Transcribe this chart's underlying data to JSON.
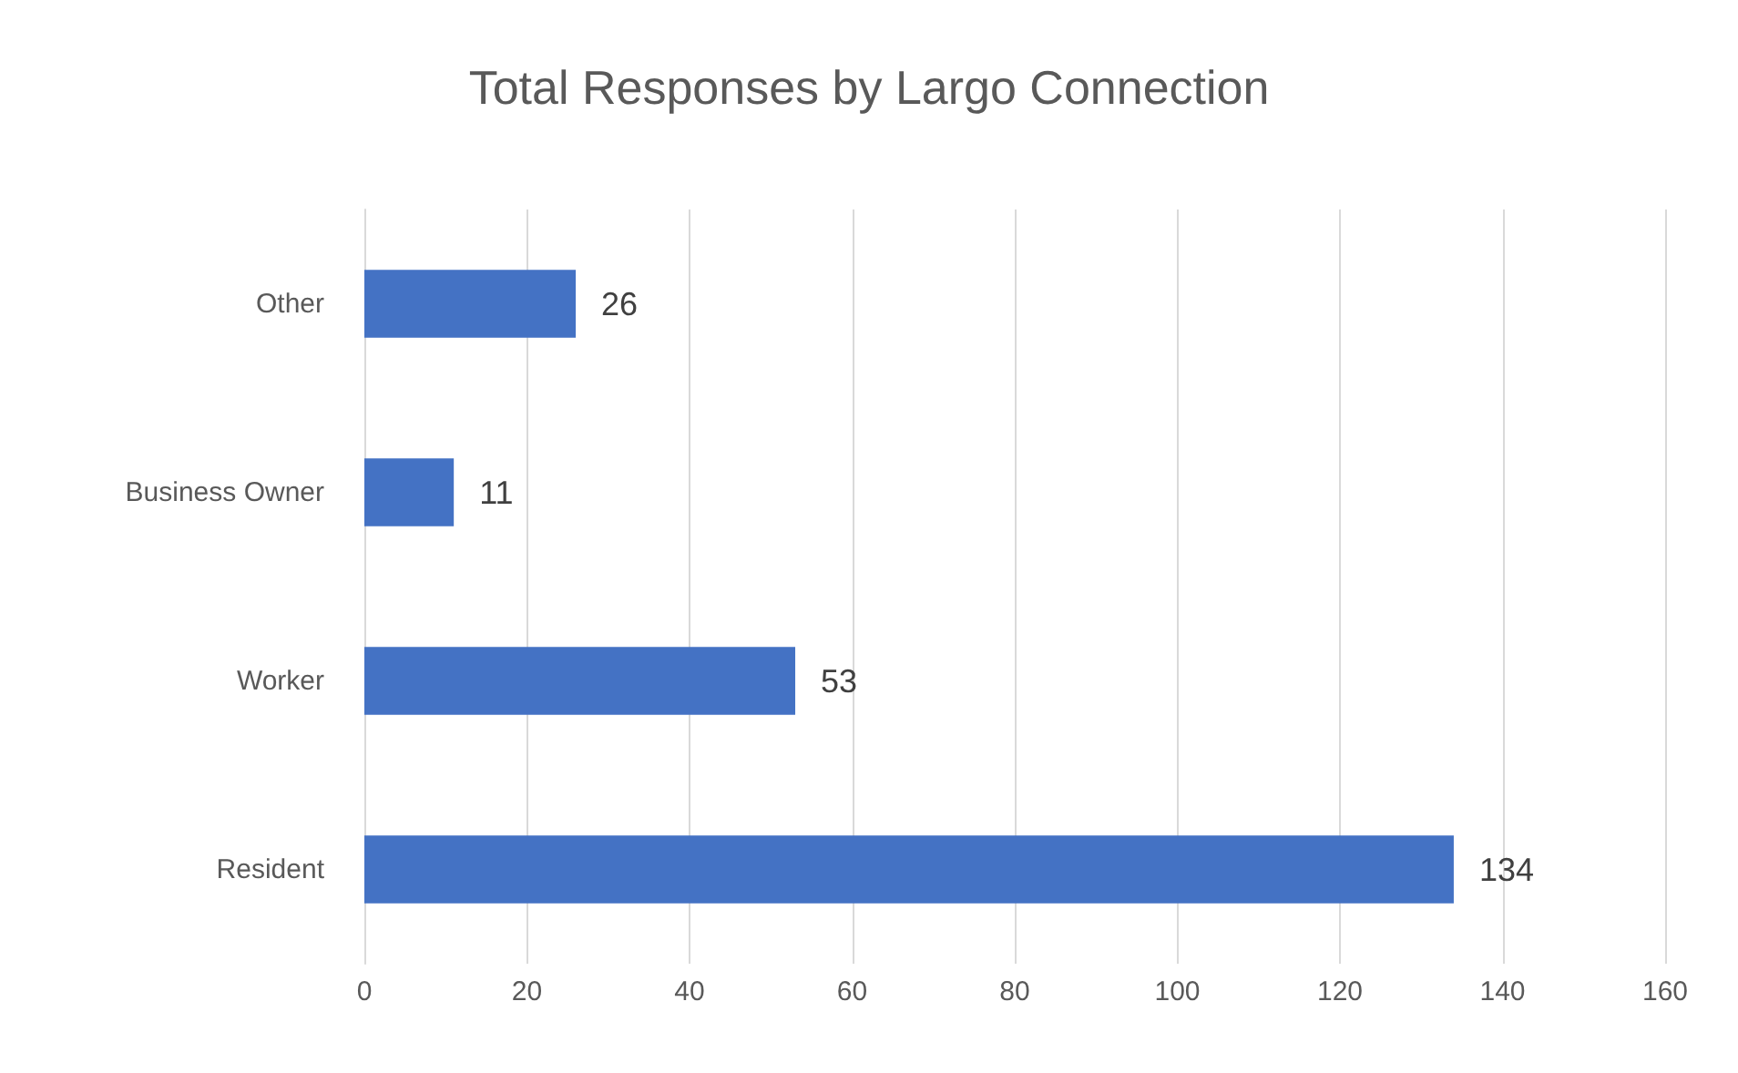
{
  "chart_data": {
    "type": "bar",
    "title": "Total Responses by Largo Connection",
    "orientation": "horizontal",
    "categories": [
      "Other",
      "Business Owner",
      "Worker",
      "Resident"
    ],
    "values": [
      26,
      11,
      53,
      134
    ],
    "color": "#4472c4",
    "xlim": [
      0,
      160
    ],
    "xticks": [
      0,
      20,
      40,
      60,
      80,
      100,
      120,
      140,
      160
    ],
    "grid": "x",
    "data_labels": true
  }
}
